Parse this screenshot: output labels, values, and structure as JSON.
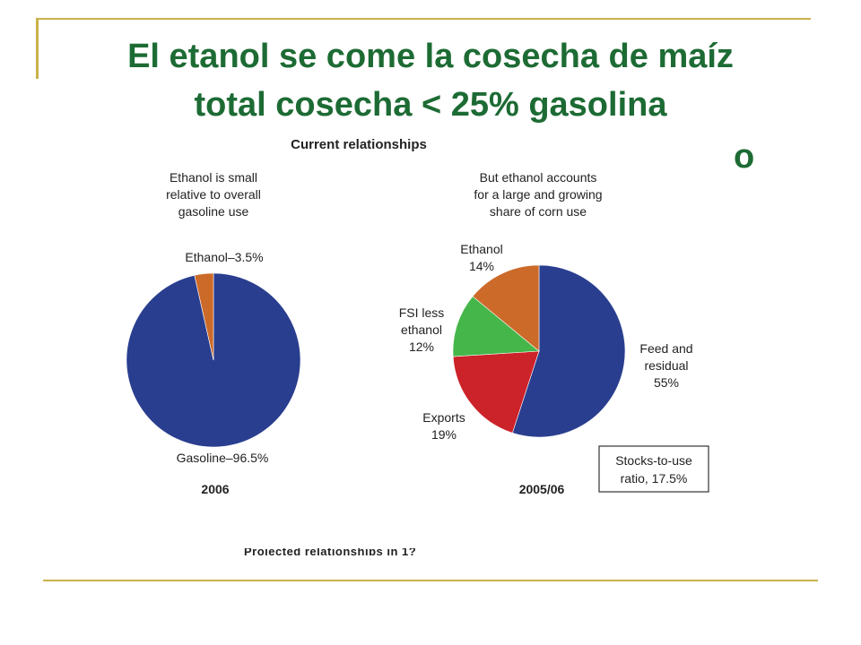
{
  "slide": {
    "title_line1": "El etanol se come la cosecha de maíz",
    "title_line2": "total cosecha < 25% gasolina",
    "title_fragment": "o"
  },
  "figure": {
    "heading": "Current relationships",
    "left_note": [
      "Ethanol is small",
      "relative to overall",
      "gasoline use"
    ],
    "right_note": [
      "But ethanol accounts",
      "for a large and growing",
      "share of corn use"
    ],
    "stocks_box": [
      "Stocks-to-use",
      "ratio, 17.5%"
    ],
    "cut_text": "Projected relationships in 1?"
  },
  "colors": {
    "title_green": "#1d6b34",
    "rule_gold": "#c9b24a",
    "blue": "#2a3e8f",
    "orange": "#cc6a2a",
    "green": "#45b649",
    "red": "#cc2229"
  },
  "chart_data": [
    {
      "type": "pie",
      "title": "2006",
      "slices": [
        {
          "label": "Gasoline–96.5%",
          "value": 96.5,
          "color": "#2a3e8f"
        },
        {
          "label": "Ethanol–3.5%",
          "value": 3.5,
          "color": "#cc6a2a"
        }
      ]
    },
    {
      "type": "pie",
      "title": "2005/06",
      "slices": [
        {
          "label": [
            "Feed and",
            "residual",
            "55%"
          ],
          "value": 55,
          "color": "#2a3e8f"
        },
        {
          "label": [
            "Exports",
            "19%"
          ],
          "value": 19,
          "color": "#cc2229"
        },
        {
          "label": [
            "FSI less",
            "ethanol",
            "12%"
          ],
          "value": 12,
          "color": "#45b649"
        },
        {
          "label": [
            "Ethanol",
            "14%"
          ],
          "value": 14,
          "color": "#cc6a2a"
        }
      ]
    }
  ]
}
